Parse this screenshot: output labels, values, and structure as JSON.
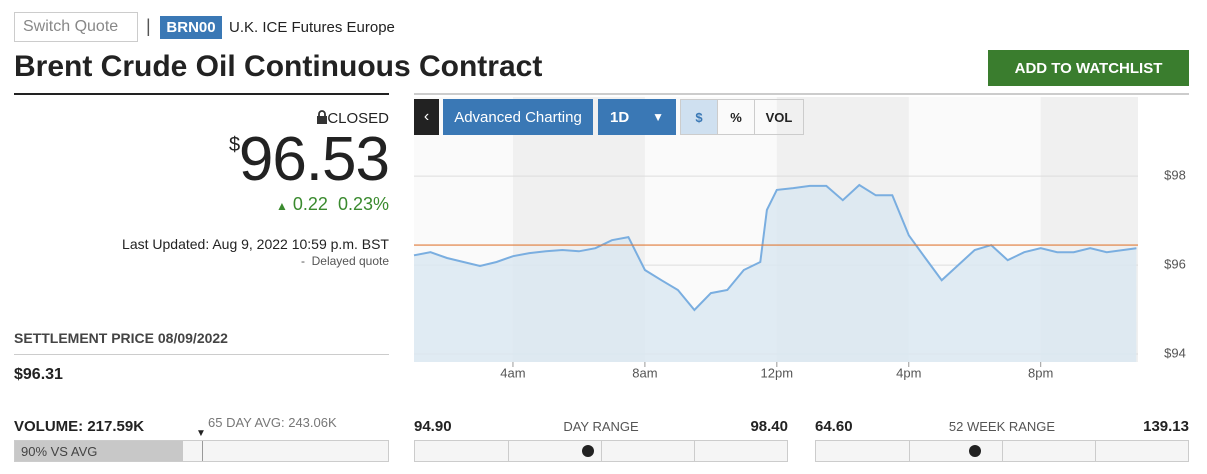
{
  "header": {
    "switch_quote": "Switch Quote",
    "separator": "|",
    "symbol": "BRN00",
    "exchange": "U.K. ICE Futures Europe",
    "title": "Brent Crude Oil Continuous Contract",
    "watchlist_button": "ADD TO WATCHLIST"
  },
  "quote": {
    "status": "CLOSED",
    "currency": "$",
    "price": {
      "value": 96.53,
      "label": "96.53"
    },
    "change": "0.22",
    "change_pct": "0.23%",
    "last_updated": "Last Updated: Aug 9, 2022 10:59 p.m. BST",
    "delay_dash": "-",
    "delay_note": "Delayed quote"
  },
  "settlement": {
    "label": "SETTLEMENT PRICE 08/09/2022",
    "value": "$96.31"
  },
  "volume": {
    "label": "VOLUME: 217.59K",
    "avg_label": "65 DAY AVG: 243.06K",
    "vs_avg": {
      "value": 90,
      "label": "90% VS AVG"
    }
  },
  "day_range": {
    "label": "DAY RANGE",
    "low": {
      "value": 94.9,
      "label": "94.90"
    },
    "high": {
      "value": 98.4,
      "label": "98.40"
    }
  },
  "week52_range": {
    "label": "52 WEEK RANGE",
    "low": {
      "value": 64.6,
      "label": "64.60"
    },
    "high": {
      "value": 139.13,
      "label": "139.13"
    }
  },
  "toolbar": {
    "advanced": "Advanced Charting",
    "period": "1D",
    "units": [
      "$",
      "%",
      "VOL"
    ]
  },
  "chart_data": {
    "type": "line",
    "color": "#7aaee0",
    "fill": "#dbe7f1",
    "reference_line": {
      "value": 96.45,
      "color": "#e07b39"
    },
    "grid": true,
    "x": [
      1.0,
      1.5,
      2.0,
      2.5,
      3.0,
      3.5,
      4.0,
      4.5,
      5.0,
      5.5,
      6.0,
      6.5,
      7.0,
      7.5,
      8.0,
      8.5,
      9.0,
      9.5,
      10.0,
      10.5,
      11.0,
      11.5,
      11.7,
      12.0,
      12.5,
      13.0,
      13.5,
      14.0,
      14.5,
      15.0,
      15.5,
      16.0,
      16.5,
      17.0,
      17.5,
      18.0,
      18.5,
      19.0,
      19.5,
      20.0,
      20.5,
      21.0,
      21.5,
      22.0,
      22.9
    ],
    "values": [
      96.22,
      96.29,
      96.16,
      96.07,
      95.98,
      96.07,
      96.2,
      96.27,
      96.31,
      96.34,
      96.31,
      96.38,
      96.56,
      96.63,
      95.89,
      95.66,
      95.44,
      94.99,
      95.37,
      95.44,
      95.89,
      96.07,
      97.24,
      97.69,
      97.73,
      97.78,
      97.78,
      97.46,
      97.8,
      97.57,
      97.57,
      96.67,
      96.16,
      95.66,
      96.0,
      96.34,
      96.45,
      96.11,
      96.29,
      96.38,
      96.29,
      96.29,
      96.38,
      96.29,
      96.38
    ],
    "xlim": [
      1,
      22.95
    ],
    "xticks": [
      {
        "value": 4,
        "label": "4am"
      },
      {
        "value": 8,
        "label": "8am"
      },
      {
        "value": 12,
        "label": "12pm"
      },
      {
        "value": 16,
        "label": "4pm"
      },
      {
        "value": 20,
        "label": "8pm"
      }
    ],
    "ylim": [
      93.82,
      99.78
    ],
    "yticks": [
      {
        "value": 98,
        "label": "$98"
      },
      {
        "value": 96,
        "label": "$96"
      },
      {
        "value": 94,
        "label": "$94"
      }
    ]
  }
}
